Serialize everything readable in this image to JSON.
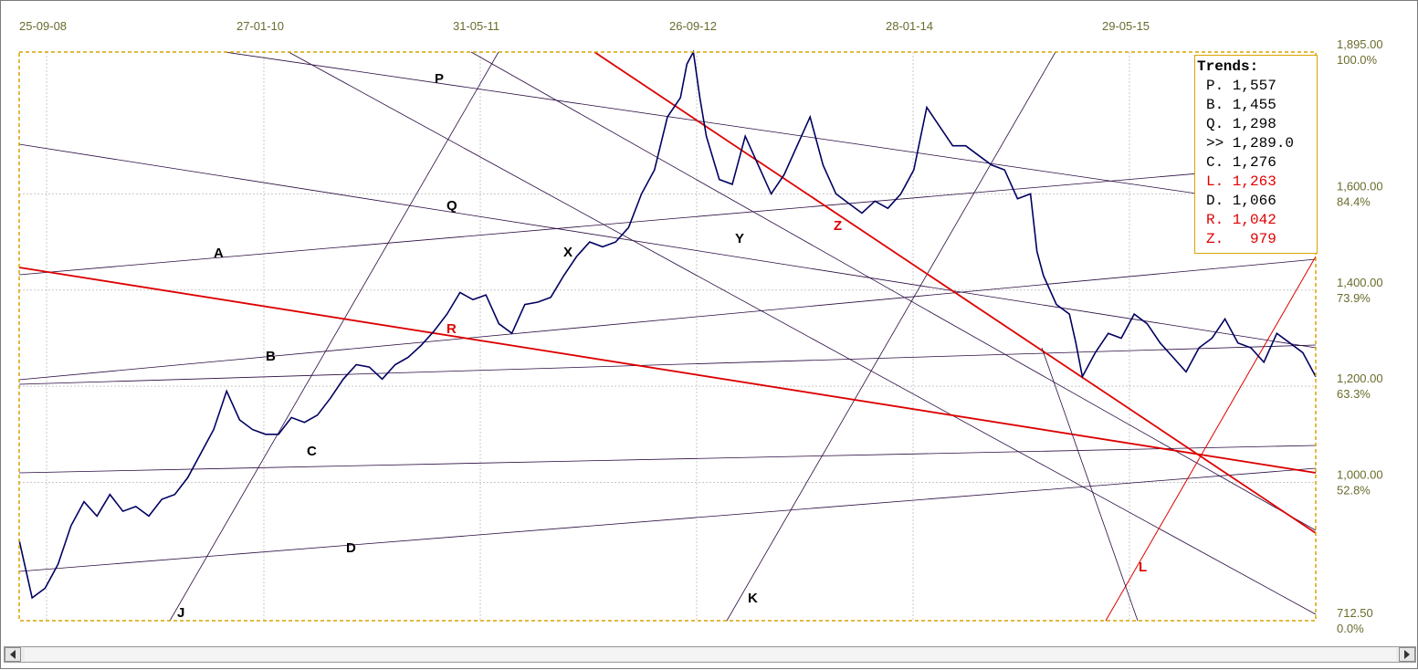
{
  "chart_data": {
    "type": "line",
    "title": "",
    "xlabel": "",
    "ylabel": "",
    "x_tick_labels": [
      "25-09-08",
      "27-01-10",
      "31-05-11",
      "26-09-12",
      "28-01-14",
      "29-05-15"
    ],
    "price_levels": [
      {
        "price": "1,895.00",
        "percent": "100.0%",
        "value": 1895
      },
      {
        "price": "1,600.00",
        "percent": "84.4%",
        "value": 1600
      },
      {
        "price": "1,400.00",
        "percent": "73.9%",
        "value": 1400
      },
      {
        "price": "1,200.00",
        "percent": "63.3%",
        "value": 1200
      },
      {
        "price": "1,000.00",
        "percent": "52.8%",
        "value": 1000
      },
      {
        "price": "712.50",
        "percent": "0.0%",
        "value": 712.5
      }
    ],
    "series_color": "#000060",
    "series": [
      {
        "values_note": "",
        "points": [
          [
            0.0,
            880
          ],
          [
            0.01,
            760
          ],
          [
            0.02,
            780
          ],
          [
            0.03,
            830
          ],
          [
            0.04,
            910
          ],
          [
            0.05,
            960
          ],
          [
            0.06,
            930
          ],
          [
            0.07,
            975
          ],
          [
            0.08,
            940
          ],
          [
            0.09,
            950
          ],
          [
            0.1,
            930
          ],
          [
            0.11,
            965
          ],
          [
            0.12,
            975
          ],
          [
            0.13,
            1010
          ],
          [
            0.14,
            1060
          ],
          [
            0.15,
            1110
          ],
          [
            0.16,
            1190
          ],
          [
            0.17,
            1130
          ],
          [
            0.18,
            1110
          ],
          [
            0.19,
            1100
          ],
          [
            0.2,
            1100
          ],
          [
            0.21,
            1135
          ],
          [
            0.22,
            1125
          ],
          [
            0.23,
            1140
          ],
          [
            0.24,
            1175
          ],
          [
            0.25,
            1215
          ],
          [
            0.26,
            1245
          ],
          [
            0.27,
            1240
          ],
          [
            0.28,
            1215
          ],
          [
            0.29,
            1245
          ],
          [
            0.3,
            1260
          ],
          [
            0.31,
            1285
          ],
          [
            0.32,
            1315
          ],
          [
            0.33,
            1350
          ],
          [
            0.34,
            1395
          ],
          [
            0.35,
            1380
          ],
          [
            0.36,
            1390
          ],
          [
            0.37,
            1330
          ],
          [
            0.38,
            1310
          ],
          [
            0.39,
            1370
          ],
          [
            0.4,
            1375
          ],
          [
            0.41,
            1385
          ],
          [
            0.42,
            1430
          ],
          [
            0.43,
            1470
          ],
          [
            0.44,
            1500
          ],
          [
            0.45,
            1490
          ],
          [
            0.46,
            1500
          ],
          [
            0.47,
            1530
          ],
          [
            0.48,
            1600
          ],
          [
            0.49,
            1650
          ],
          [
            0.5,
            1760
          ],
          [
            0.51,
            1800
          ],
          [
            0.515,
            1870
          ],
          [
            0.52,
            1895
          ],
          [
            0.525,
            1800
          ],
          [
            0.53,
            1720
          ],
          [
            0.54,
            1630
          ],
          [
            0.55,
            1620
          ],
          [
            0.56,
            1720
          ],
          [
            0.57,
            1660
          ],
          [
            0.58,
            1600
          ],
          [
            0.59,
            1640
          ],
          [
            0.6,
            1700
          ],
          [
            0.61,
            1760
          ],
          [
            0.62,
            1660
          ],
          [
            0.63,
            1600
          ],
          [
            0.64,
            1580
          ],
          [
            0.65,
            1560
          ],
          [
            0.66,
            1585
          ],
          [
            0.67,
            1570
          ],
          [
            0.68,
            1600
          ],
          [
            0.69,
            1650
          ],
          [
            0.7,
            1780
          ],
          [
            0.71,
            1740
          ],
          [
            0.72,
            1700
          ],
          [
            0.73,
            1700
          ],
          [
            0.74,
            1680
          ],
          [
            0.75,
            1660
          ],
          [
            0.76,
            1650
          ],
          [
            0.77,
            1590
          ],
          [
            0.78,
            1600
          ],
          [
            0.785,
            1480
          ],
          [
            0.79,
            1430
          ],
          [
            0.8,
            1370
          ],
          [
            0.81,
            1350
          ],
          [
            0.815,
            1290
          ],
          [
            0.82,
            1220
          ],
          [
            0.83,
            1270
          ],
          [
            0.84,
            1310
          ],
          [
            0.85,
            1300
          ],
          [
            0.86,
            1350
          ],
          [
            0.87,
            1330
          ],
          [
            0.88,
            1290
          ],
          [
            0.89,
            1260
          ],
          [
            0.9,
            1230
          ],
          [
            0.91,
            1280
          ],
          [
            0.92,
            1300
          ],
          [
            0.93,
            1340
          ],
          [
            0.94,
            1290
          ],
          [
            0.95,
            1280
          ],
          [
            0.96,
            1250
          ],
          [
            0.97,
            1310
          ],
          [
            0.98,
            1290
          ],
          [
            0.99,
            1270
          ],
          [
            1.0,
            1220
          ]
        ]
      }
    ],
    "trend_lines": [
      {
        "label": "A",
        "color": "#2a0a40",
        "thick": false,
        "x1": 0.0,
        "y1": 1410,
        "x2": 1.0,
        "y2": 1460
      },
      {
        "label": "B",
        "color": "#2a0a40",
        "thick": false,
        "x1": 0.0,
        "y1": 1195,
        "x2": 1.0,
        "y2": 1290
      }
    ]
  },
  "labels": {
    "A": "A",
    "B": "B",
    "C": "C",
    "D": "D",
    "J": "J",
    "K": "K",
    "L": "L",
    "P": "P",
    "Q": "Q",
    "R": "R",
    "X": "X",
    "Y": "Y",
    "Z": "Z"
  },
  "trends_panel": {
    "title": "Trends:",
    "rows": [
      {
        "text": "P. 1,557",
        "color": "#000000"
      },
      {
        "text": "B. 1,455",
        "color": "#000000"
      },
      {
        "text": "Q. 1,298",
        "color": "#000000"
      },
      {
        "text": ">> 1,289.0",
        "color": "#000000"
      },
      {
        "text": "C. 1,276",
        "color": "#000000"
      },
      {
        "text": "L. 1,263",
        "color": "#e00000"
      },
      {
        "text": "D. 1,066",
        "color": "#000000"
      },
      {
        "text": "R. 1,042",
        "color": "#e00000"
      },
      {
        "text": "Z.   979",
        "color": "#e00000"
      }
    ]
  },
  "colors": {
    "price_series": "#000060",
    "plot_border": "#d9a400",
    "grid": "#c8c8c8",
    "thin_line": "#2a0a40",
    "red_line": "#dd0000"
  },
  "scrollbar": {
    "left_icon": "arrow-left-icon",
    "right_icon": "arrow-right-icon"
  }
}
